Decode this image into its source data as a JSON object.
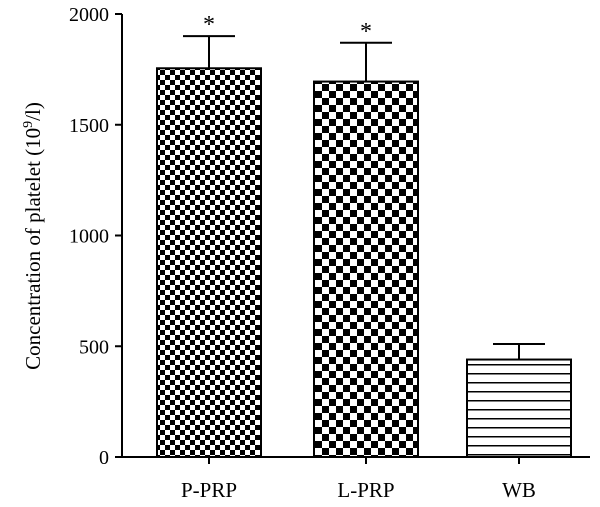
{
  "chart_data": {
    "type": "bar",
    "categories": [
      "P-PRP",
      "L-PRP",
      "WB"
    ],
    "values": [
      1755,
      1695,
      440
    ],
    "error_upper": [
      1900,
      1870,
      510
    ],
    "significance": [
      "*",
      "*",
      ""
    ],
    "fill_patterns": [
      "fine-checker",
      "coarse-checker",
      "horizontal-lines"
    ],
    "ylabel": "Concentration of platelet (10",
    "ylabel_sup": "9",
    "ylabel_end": "/l)",
    "ylim": [
      0,
      2000
    ],
    "yticks": [
      "0",
      "500",
      "1000",
      "1500",
      "2000"
    ],
    "ytick_values": [
      0,
      500,
      1000,
      1500,
      2000
    ],
    "grid": false,
    "colors": {
      "ink": "#000000",
      "background": "#ffffff"
    }
  }
}
